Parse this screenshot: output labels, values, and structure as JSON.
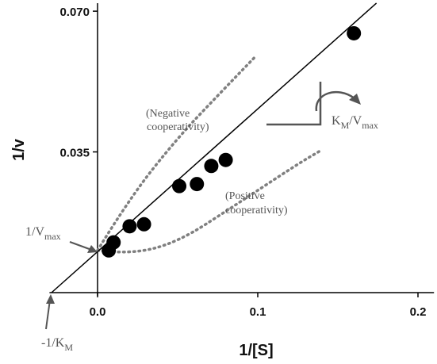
{
  "chart_data": {
    "type": "scatter",
    "title": "",
    "xlabel": "1/[S]",
    "ylabel": "1/v",
    "xlim": [
      -0.03,
      0.21
    ],
    "ylim": [
      0.0,
      0.072
    ],
    "xticks": [
      0.0,
      0.1,
      0.2
    ],
    "xtick_labels": [
      "0.0",
      "0.1",
      "0.2"
    ],
    "yticks": [
      0.035,
      0.07
    ],
    "ytick_labels": [
      "0.035",
      "0.070"
    ],
    "grid": false,
    "points": [
      {
        "x": 0.007,
        "y": 0.0105
      },
      {
        "x": 0.01,
        "y": 0.0125
      },
      {
        "x": 0.02,
        "y": 0.0165
      },
      {
        "x": 0.029,
        "y": 0.017
      },
      {
        "x": 0.051,
        "y": 0.0265
      },
      {
        "x": 0.062,
        "y": 0.027
      },
      {
        "x": 0.071,
        "y": 0.0315
      },
      {
        "x": 0.08,
        "y": 0.033
      },
      {
        "x": 0.16,
        "y": 0.0645
      }
    ],
    "fit_line": {
      "slope": 0.355,
      "intercept": 0.0102
    },
    "dotted_curves": [
      {
        "label_line1": "(Negative",
        "label_line2": "cooperativity)",
        "points": [
          [
            0.0,
            0.0105
          ],
          [
            0.02,
            0.0235
          ],
          [
            0.05,
            0.0385
          ],
          [
            0.075,
            0.049
          ],
          [
            0.098,
            0.0585
          ]
        ]
      },
      {
        "label_line1": "(Positive",
        "label_line2": "cooperativity)",
        "points": [
          [
            0.0,
            0.0105
          ],
          [
            0.02,
            0.0095
          ],
          [
            0.05,
            0.0125
          ],
          [
            0.085,
            0.0215
          ],
          [
            0.125,
            0.032
          ],
          [
            0.14,
            0.0355
          ]
        ]
      }
    ],
    "annotations": {
      "intercept_y": {
        "text": "1/V",
        "sub": "max"
      },
      "intercept_x": {
        "text": "-1/K",
        "sub": "M"
      },
      "slope": {
        "k": "K",
        "k_sub": "M",
        "sep": "/V",
        "v_sub": "max"
      }
    },
    "colors": {
      "points": "#000000",
      "line": "#000000",
      "annotation": "#555555",
      "dotted": "#808080",
      "axis": "#000000"
    }
  }
}
